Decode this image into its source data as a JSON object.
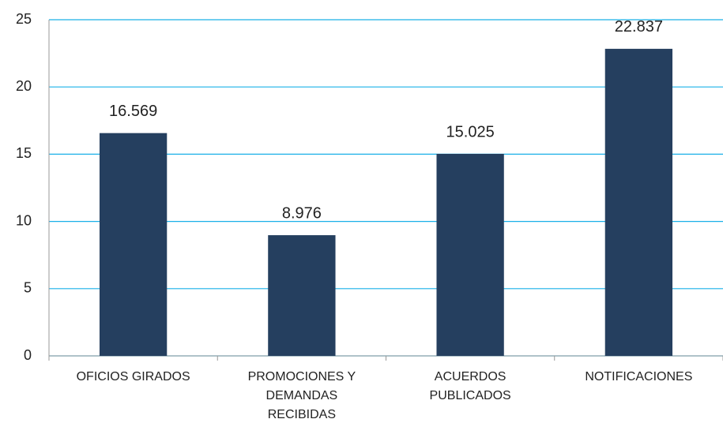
{
  "chart_data": {
    "type": "bar",
    "categories": [
      "OFICIOS GIRADOS",
      "PROMOCIONES Y DEMANDAS RECIBIDAS",
      "ACUERDOS PUBLICADOS",
      "NOTIFICACIONES"
    ],
    "values": [
      16.569,
      8.976,
      15.025,
      22.837
    ],
    "color": "#253f5f",
    "ylim": [
      0,
      25
    ],
    "yticks": [
      0,
      5,
      10,
      15,
      20,
      25
    ],
    "grid": true,
    "grid_color": "#1ab0e8"
  }
}
